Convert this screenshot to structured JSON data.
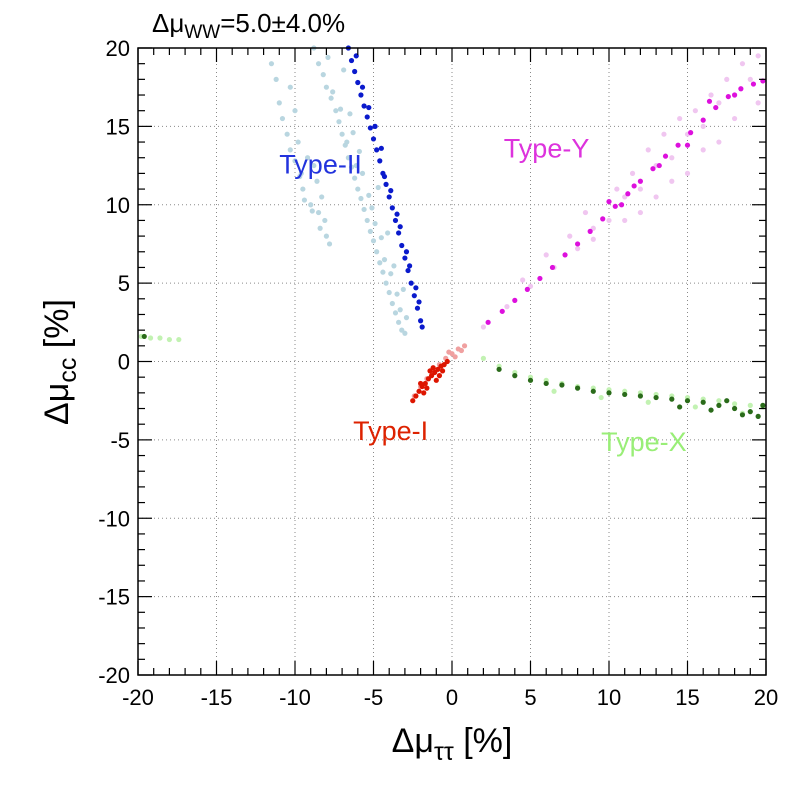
{
  "chart_data": {
    "type": "scatter",
    "title_prefix": "Δμ",
    "title_sub": "WW",
    "title_value": "=5.0±4.0%",
    "xlabel_main": "Δμ",
    "xlabel_sub": "ττ",
    "xlabel_unit": " [%]",
    "ylabel_main": "Δμ",
    "ylabel_sub": "cc",
    "ylabel_unit": " [%]",
    "xlim": [
      -20,
      20
    ],
    "ylim": [
      -20,
      20
    ],
    "grid": true,
    "x_ticks": [
      -20,
      -15,
      -10,
      -5,
      0,
      5,
      10,
      15,
      20
    ],
    "y_ticks": [
      -20,
      -15,
      -10,
      -5,
      0,
      5,
      10,
      15,
      20
    ],
    "x_tick_labels": [
      "-20",
      "-15",
      "-10",
      "-5",
      "0",
      "5",
      "10",
      "15",
      "20"
    ],
    "y_tick_labels": [
      "-20",
      "-15",
      "-10",
      "-5",
      "0",
      "5",
      "10",
      "15",
      "20"
    ],
    "annotations": [
      {
        "id": "type-ii",
        "text": "Type-II",
        "x": -11.0,
        "y": 12.0,
        "color": "#2233dd"
      },
      {
        "id": "type-y",
        "text": "Type-Y",
        "x": 3.3,
        "y": 13.0,
        "color": "#dd33dd"
      },
      {
        "id": "type-i",
        "text": "Type-I",
        "x": -6.3,
        "y": -5.0,
        "color": "#dd2200"
      },
      {
        "id": "type-x",
        "text": "Type-X",
        "x": 9.5,
        "y": -5.7,
        "color": "#99ee77"
      }
    ],
    "series": [
      {
        "name": "Type-II (light)",
        "color": "#b9d6e0",
        "points": [
          [
            -11.5,
            19.0
          ],
          [
            -11.2,
            18.0
          ],
          [
            -11.0,
            16.5
          ],
          [
            -10.8,
            15.5
          ],
          [
            -10.5,
            14.5
          ],
          [
            -10.3,
            13.5
          ],
          [
            -10.0,
            12.8
          ],
          [
            -10.3,
            17.5
          ],
          [
            -10.0,
            16.0
          ],
          [
            -9.8,
            14.0
          ],
          [
            -9.6,
            12.0
          ],
          [
            -9.5,
            11.0
          ],
          [
            -9.2,
            13.0
          ],
          [
            -9.0,
            10.0
          ],
          [
            -8.8,
            12.5
          ],
          [
            -8.6,
            11.5
          ],
          [
            -8.5,
            9.5
          ],
          [
            -8.3,
            10.5
          ],
          [
            -8.1,
            9.0
          ],
          [
            -8.0,
            8.0
          ],
          [
            -7.8,
            7.5
          ],
          [
            -9.7,
            11.8
          ],
          [
            -9.4,
            10.3
          ],
          [
            -8.9,
            9.6
          ],
          [
            -8.4,
            8.5
          ],
          [
            -8.8,
            20.0
          ],
          [
            -8.5,
            19.0
          ],
          [
            -8.2,
            18.3
          ],
          [
            -8.0,
            17.5
          ],
          [
            -7.7,
            16.8
          ],
          [
            -7.4,
            16.0
          ],
          [
            -7.2,
            15.3
          ],
          [
            -7.0,
            14.5
          ],
          [
            -6.8,
            13.8
          ],
          [
            -6.6,
            13.0
          ],
          [
            -6.4,
            12.4
          ],
          [
            -6.2,
            11.7
          ],
          [
            -6.0,
            11.0
          ],
          [
            -5.8,
            10.4
          ],
          [
            -5.6,
            9.7
          ],
          [
            -5.4,
            9.0
          ],
          [
            -5.2,
            8.3
          ],
          [
            -5.0,
            7.7
          ],
          [
            -4.8,
            7.0
          ],
          [
            -4.6,
            6.3
          ],
          [
            -4.4,
            5.7
          ],
          [
            -4.2,
            5.0
          ],
          [
            -4.0,
            4.4
          ],
          [
            -3.8,
            3.7
          ],
          [
            -3.6,
            3.1
          ],
          [
            -3.4,
            2.5
          ],
          [
            -3.2,
            2.0
          ],
          [
            -3.0,
            1.8
          ],
          [
            -7.6,
            17.2
          ],
          [
            -7.1,
            16.1
          ],
          [
            -6.7,
            14.0
          ],
          [
            -6.3,
            14.6
          ],
          [
            -6.1,
            12.5
          ],
          [
            -5.7,
            12.0
          ],
          [
            -5.3,
            10.6
          ],
          [
            -5.1,
            9.8
          ],
          [
            -4.9,
            8.8
          ],
          [
            -4.5,
            7.9
          ],
          [
            -4.3,
            6.5
          ],
          [
            -3.9,
            5.6
          ],
          [
            -3.5,
            4.3
          ],
          [
            -3.3,
            3.3
          ],
          [
            -6.9,
            18.6
          ],
          [
            -7.9,
            19.4
          ],
          [
            -6.5,
            15.8
          ],
          [
            -5.9,
            13.4
          ],
          [
            -4.7,
            11.1
          ],
          [
            -4.1,
            8.2
          ],
          [
            -3.7,
            6.1
          ],
          [
            -3.1,
            4.6
          ],
          [
            -2.9,
            2.8
          ]
        ]
      },
      {
        "name": "Type-II (dark)",
        "color": "#0a1acc",
        "points": [
          [
            -6.6,
            20.0
          ],
          [
            -6.4,
            19.2
          ],
          [
            -6.2,
            18.5
          ],
          [
            -6.0,
            17.8
          ],
          [
            -5.8,
            17.0
          ],
          [
            -5.6,
            16.3
          ],
          [
            -5.4,
            15.6
          ],
          [
            -5.2,
            14.9
          ],
          [
            -5.0,
            14.2
          ],
          [
            -4.8,
            13.5
          ],
          [
            -4.6,
            12.8
          ],
          [
            -4.4,
            12.0
          ],
          [
            -4.2,
            11.3
          ],
          [
            -4.0,
            10.5
          ],
          [
            -3.8,
            9.8
          ],
          [
            -3.6,
            9.0
          ],
          [
            -3.4,
            8.2
          ],
          [
            -3.2,
            7.4
          ],
          [
            -3.0,
            6.6
          ],
          [
            -2.8,
            5.8
          ],
          [
            -2.6,
            5.0
          ],
          [
            -2.4,
            4.2
          ],
          [
            -2.2,
            3.4
          ],
          [
            -2.0,
            2.6
          ],
          [
            -6.1,
            19.5
          ],
          [
            -5.7,
            17.5
          ],
          [
            -5.3,
            16.2
          ],
          [
            -4.9,
            15.0
          ],
          [
            -4.5,
            13.6
          ],
          [
            -4.3,
            11.8
          ],
          [
            -3.9,
            10.9
          ],
          [
            -3.5,
            9.4
          ],
          [
            -3.3,
            8.6
          ],
          [
            -2.9,
            7.0
          ],
          [
            -2.7,
            6.1
          ],
          [
            -2.3,
            4.7
          ],
          [
            -2.1,
            3.8
          ],
          [
            -1.9,
            2.2
          ]
        ]
      },
      {
        "name": "Type-Y (light)",
        "color": "#f0c6f0",
        "points": [
          [
            2.0,
            2.2
          ],
          [
            3.5,
            3.5
          ],
          [
            5.0,
            4.8
          ],
          [
            6.5,
            6.0
          ],
          [
            8.0,
            7.2
          ],
          [
            9.0,
            8.5
          ],
          [
            10.0,
            9.0
          ],
          [
            11.0,
            10.5
          ],
          [
            12.0,
            11.0
          ],
          [
            13.0,
            12.5
          ],
          [
            14.0,
            13.0
          ],
          [
            15.0,
            14.5
          ],
          [
            16.0,
            15.0
          ],
          [
            17.0,
            16.5
          ],
          [
            18.0,
            17.0
          ],
          [
            19.0,
            18.0
          ],
          [
            19.5,
            19.5
          ],
          [
            18.5,
            19.0
          ],
          [
            17.5,
            18.0
          ],
          [
            16.5,
            17.0
          ],
          [
            15.5,
            16.0
          ],
          [
            14.5,
            15.5
          ],
          [
            13.5,
            14.5
          ],
          [
            12.5,
            13.5
          ],
          [
            11.5,
            12.0
          ],
          [
            10.5,
            11.0
          ],
          [
            8.5,
            9.5
          ],
          [
            7.5,
            8.0
          ],
          [
            6.0,
            6.8
          ],
          [
            4.5,
            5.2
          ],
          [
            12.0,
            9.5
          ],
          [
            14.0,
            11.5
          ],
          [
            16.0,
            13.5
          ],
          [
            18.0,
            15.5
          ],
          [
            19.5,
            16.5
          ],
          [
            17.0,
            14.0
          ],
          [
            15.0,
            12.0
          ],
          [
            13.0,
            10.5
          ],
          [
            11.0,
            9.0
          ],
          [
            9.0,
            7.8
          ]
        ]
      },
      {
        "name": "Type-Y (dark)",
        "color": "#dd10dd",
        "points": [
          [
            2.3,
            2.5
          ],
          [
            3.2,
            3.2
          ],
          [
            4.0,
            3.9
          ],
          [
            4.8,
            4.6
          ],
          [
            5.6,
            5.3
          ],
          [
            6.4,
            6.0
          ],
          [
            7.2,
            6.8
          ],
          [
            8.0,
            7.5
          ],
          [
            8.8,
            8.3
          ],
          [
            9.6,
            9.1
          ],
          [
            10.4,
            9.9
          ],
          [
            11.2,
            10.7
          ],
          [
            12.0,
            11.5
          ],
          [
            12.8,
            12.3
          ],
          [
            13.6,
            13.1
          ],
          [
            14.4,
            13.8
          ],
          [
            15.2,
            14.6
          ],
          [
            16.0,
            15.4
          ],
          [
            16.8,
            16.2
          ],
          [
            17.6,
            16.9
          ],
          [
            18.4,
            17.4
          ],
          [
            19.2,
            17.7
          ],
          [
            19.8,
            17.9
          ],
          [
            10.0,
            10.2
          ],
          [
            10.8,
            10.0
          ],
          [
            13.2,
            12.5
          ],
          [
            15.0,
            13.8
          ],
          [
            16.4,
            16.6
          ],
          [
            18.0,
            17.0
          ],
          [
            11.6,
            11.2
          ]
        ]
      },
      {
        "name": "Type-X (light)",
        "color": "#c2f2b2",
        "points": [
          [
            2.0,
            0.2
          ],
          [
            3.0,
            -0.3
          ],
          [
            4.0,
            -0.7
          ],
          [
            5.0,
            -1.0
          ],
          [
            6.0,
            -1.2
          ],
          [
            7.0,
            -1.4
          ],
          [
            8.0,
            -1.6
          ],
          [
            9.0,
            -1.7
          ],
          [
            10.0,
            -1.8
          ],
          [
            11.0,
            -1.9
          ],
          [
            12.0,
            -2.0
          ],
          [
            13.0,
            -2.1
          ],
          [
            14.0,
            -2.2
          ],
          [
            15.0,
            -2.3
          ],
          [
            16.0,
            -2.4
          ],
          [
            17.0,
            -2.5
          ],
          [
            18.0,
            -2.7
          ],
          [
            19.0,
            -2.8
          ],
          [
            19.8,
            -2.9
          ],
          [
            6.5,
            -1.9
          ],
          [
            9.5,
            -2.3
          ],
          [
            12.5,
            -2.6
          ],
          [
            15.5,
            -2.9
          ],
          [
            18.5,
            -3.3
          ],
          [
            -19.8,
            1.6
          ],
          [
            -19.2,
            1.5
          ],
          [
            -18.6,
            1.5
          ],
          [
            -18.0,
            1.4
          ],
          [
            -17.4,
            1.4
          ]
        ]
      },
      {
        "name": "Type-X (dark)",
        "color": "#2a6b1a",
        "points": [
          [
            3.0,
            -0.5
          ],
          [
            4.0,
            -0.9
          ],
          [
            5.0,
            -1.2
          ],
          [
            6.0,
            -1.4
          ],
          [
            7.0,
            -1.5
          ],
          [
            8.0,
            -1.7
          ],
          [
            9.0,
            -1.9
          ],
          [
            10.0,
            -2.0
          ],
          [
            11.0,
            -2.1
          ],
          [
            12.0,
            -2.2
          ],
          [
            13.0,
            -2.3
          ],
          [
            14.0,
            -2.4
          ],
          [
            15.0,
            -2.5
          ],
          [
            16.0,
            -2.6
          ],
          [
            17.0,
            -2.8
          ],
          [
            18.0,
            -3.0
          ],
          [
            19.0,
            -3.2
          ],
          [
            19.8,
            -2.8
          ],
          [
            14.5,
            -2.9
          ],
          [
            16.5,
            -3.1
          ],
          [
            18.5,
            -3.4
          ],
          [
            17.5,
            -2.5
          ],
          [
            19.5,
            -3.5
          ],
          [
            -19.6,
            1.6
          ]
        ]
      },
      {
        "name": "Type-I (light)",
        "color": "#f0a0a0",
        "points": [
          [
            -2.4,
            -2.2
          ],
          [
            -2.0,
            -1.6
          ],
          [
            -1.6,
            -1.1
          ],
          [
            -1.2,
            -0.6
          ],
          [
            -0.8,
            -0.2
          ],
          [
            -0.4,
            0.2
          ],
          [
            0.0,
            0.5
          ],
          [
            0.4,
            0.8
          ],
          [
            0.8,
            1.0
          ],
          [
            -0.2,
            0.6
          ],
          [
            0.2,
            0.3
          ],
          [
            0.6,
            0.7
          ]
        ]
      },
      {
        "name": "Type-I (dark)",
        "color": "#dd1500",
        "points": [
          [
            -2.5,
            -2.5
          ],
          [
            -2.3,
            -2.2
          ],
          [
            -2.1,
            -1.9
          ],
          [
            -1.9,
            -1.6
          ],
          [
            -1.7,
            -1.4
          ],
          [
            -1.5,
            -1.1
          ],
          [
            -1.3,
            -0.9
          ],
          [
            -1.1,
            -0.7
          ],
          [
            -0.9,
            -0.5
          ],
          [
            -0.7,
            -0.3
          ],
          [
            -0.5,
            -0.2
          ],
          [
            -0.3,
            0.0
          ],
          [
            -2.0,
            -1.4
          ],
          [
            -1.6,
            -1.7
          ],
          [
            -1.2,
            -0.4
          ],
          [
            -0.8,
            -0.9
          ],
          [
            -1.4,
            -0.6
          ],
          [
            -1.0,
            -1.2
          ],
          [
            -0.6,
            -0.6
          ],
          [
            -1.8,
            -2.0
          ]
        ]
      }
    ]
  }
}
